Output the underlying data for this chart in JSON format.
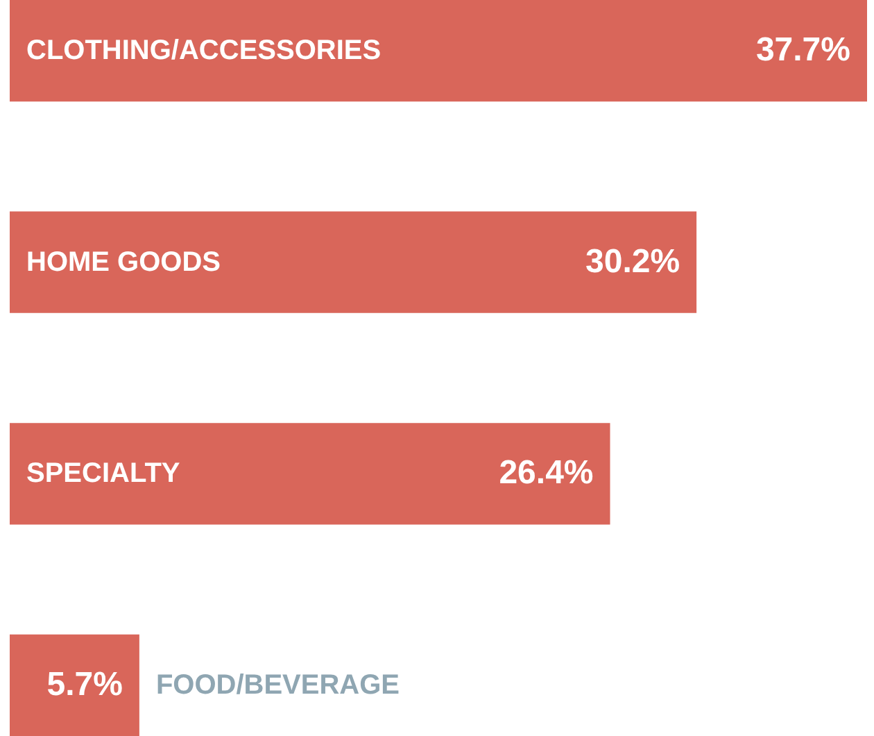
{
  "chart_data": {
    "type": "bar",
    "orientation": "horizontal",
    "categories": [
      "CLOTHING/ACCESSORIES",
      "HOME GOODS",
      "SPECIALTY",
      "FOOD/BEVERAGE"
    ],
    "values": [
      37.7,
      30.2,
      26.4,
      5.7
    ],
    "value_labels": [
      "37.7%",
      "30.2%",
      "26.4%",
      "5.7%"
    ],
    "color": "#d9665a"
  }
}
